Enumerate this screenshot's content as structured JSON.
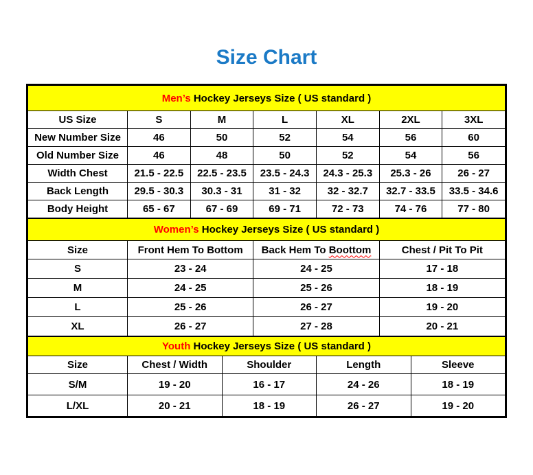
{
  "page": {
    "title": "Size Chart"
  },
  "colors": {
    "title_blue": "#1b7ac6",
    "section_yellow": "#ffff00",
    "accent_red": "#ff0000"
  },
  "sections": [
    {
      "id": "mens",
      "header_highlight": "Men’s",
      "header_rest": " Hockey Jerseys Size ( US standard )",
      "columns": [
        "US Size",
        "S",
        "M",
        "L",
        "XL",
        "2XL",
        "3XL"
      ],
      "rows": [
        [
          "New Number Size",
          "46",
          "50",
          "52",
          "54",
          "56",
          "60"
        ],
        [
          "Old Number Size",
          "46",
          "48",
          "50",
          "52",
          "54",
          "56"
        ],
        [
          "Width Chest",
          "21.5 - 22.5",
          "22.5 - 23.5",
          "23.5 - 24.3",
          "24.3 - 25.3",
          "25.3 - 26",
          "26 - 27"
        ],
        [
          "Back Length",
          "29.5 - 30.3",
          "30.3 - 31",
          "31 - 32",
          "32 - 32.7",
          "32.7 - 33.5",
          "33.5 - 34.6"
        ],
        [
          "Body Height",
          "65 - 67",
          "67 - 69",
          "69 - 71",
          "72 - 73",
          "74 - 76",
          "77 - 80"
        ]
      ]
    },
    {
      "id": "womens",
      "header_highlight": "Women’s",
      "header_rest": " Hockey Jerseys Size ( US standard )",
      "columns": [
        "Size",
        "Front Hem To Bottom",
        "Back Hem To",
        "Chest / Pit To Pit"
      ],
      "misspelled_word": "Boottom",
      "rows": [
        [
          "S",
          "23 - 24",
          "24 - 25",
          "17 - 18"
        ],
        [
          "M",
          "24 - 25",
          "25 - 26",
          "18 - 19"
        ],
        [
          "L",
          "25 - 26",
          "26 - 27",
          "19 - 20"
        ],
        [
          "XL",
          "26 - 27",
          "27 - 28",
          "20 - 21"
        ]
      ]
    },
    {
      "id": "youth",
      "header_highlight": "Youth",
      "header_rest": " Hockey Jerseys Size ( US standard )",
      "columns": [
        "Size",
        "Chest / Width",
        "Shoulder",
        "Length",
        "Sleeve"
      ],
      "rows": [
        [
          "S/M",
          "19 - 20",
          "16 - 17",
          "24 - 26",
          "18 - 19"
        ],
        [
          "L/XL",
          "20 - 21",
          "18 - 19",
          "26 - 27",
          "19 - 20"
        ]
      ]
    }
  ]
}
